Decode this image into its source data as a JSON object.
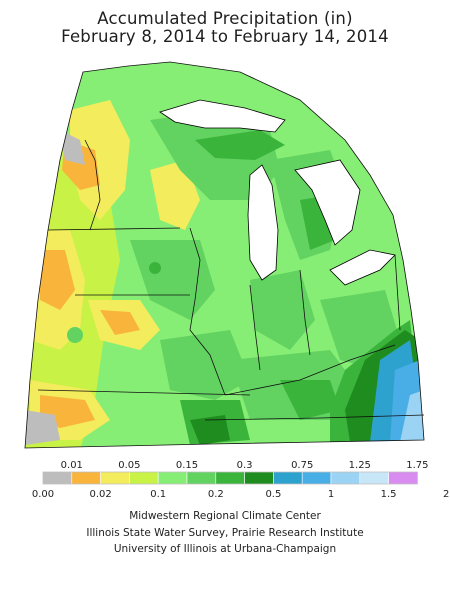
{
  "title": {
    "line1": "Accumulated Precipitation (in)",
    "line2": "February 8, 2014 to February 14, 2014"
  },
  "legend": {
    "top_labels": [
      "0.01",
      "0.05",
      "0.15",
      "0.3",
      "0.75",
      "1.25",
      "1.75"
    ],
    "bottom_labels": [
      "0.00",
      "0.02",
      "0.1",
      "0.2",
      "0.5",
      "1",
      "1.5",
      "2"
    ],
    "colors": [
      "#bdbdbd",
      "#f9b43c",
      "#f3ec5c",
      "#c8f245",
      "#87ee75",
      "#62d261",
      "#3bb43c",
      "#1e8c1e",
      "#2ea2cf",
      "#4aaee6",
      "#9ad3f3",
      "#c7e7f8",
      "#d88cf0"
    ]
  },
  "map": {
    "colors": {
      "gray": "#bdbdbd",
      "orange": "#f9b43c",
      "yellow": "#f3ec5c",
      "lime": "#c8f245",
      "light_green": "#87ee75",
      "green": "#62d261",
      "mid_green": "#3bb43c",
      "dark_green": "#1e8c1e",
      "blue": "#2ea2cf",
      "light_blue": "#4aaee6",
      "pale_blue": "#9ad3f3",
      "lake": "#ffffff"
    }
  },
  "credits": {
    "line1": "Midwestern Regional Climate Center",
    "line2": "Illinois State Water Survey, Prairie Research Institute",
    "line3": "University of Illinois at Urbana-Champaign"
  }
}
